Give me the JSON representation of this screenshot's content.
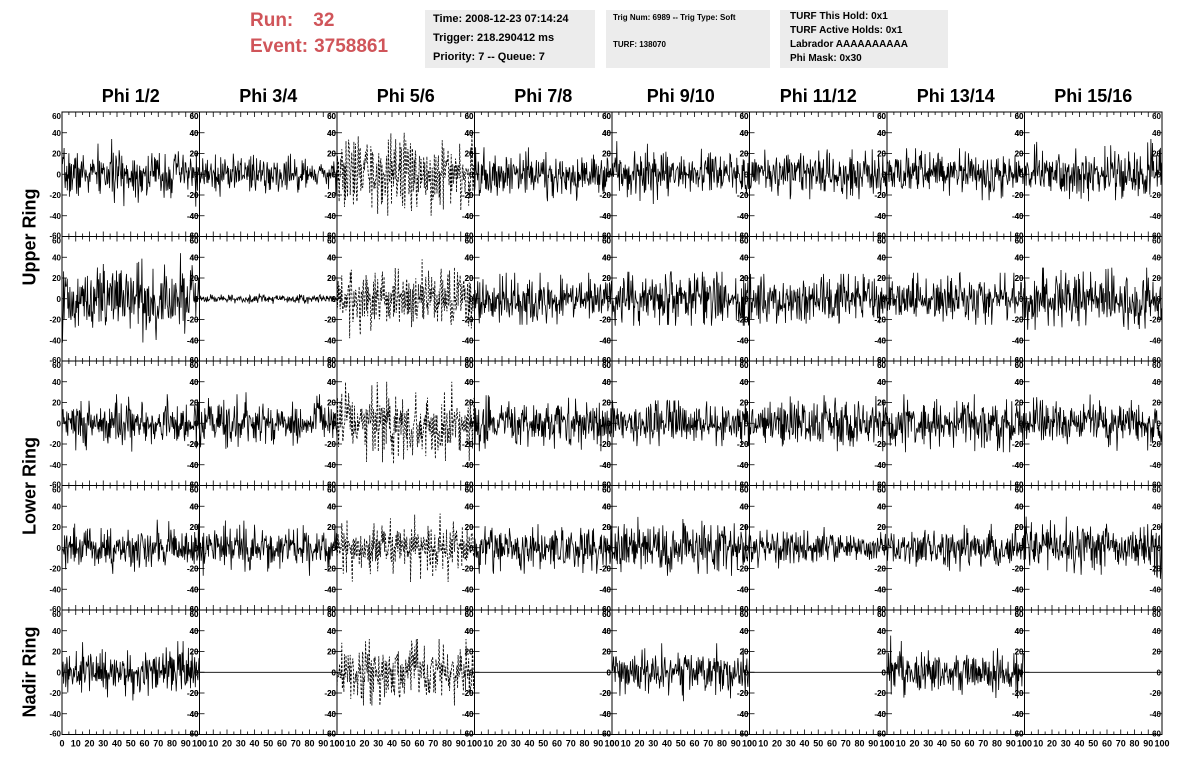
{
  "run": {
    "run_label": "Run:",
    "run_number": "32",
    "event_label": "Event:",
    "event_number": "3758861"
  },
  "info_box_1": [
    "Time: 2008-12-23 07:14:24",
    "Trigger: 218.290412 ms",
    "Priority: 7 -- Queue: 7"
  ],
  "info_box_2": [
    "Trig Num: 6989 -- Trig Type: Soft",
    "TURF: 138070"
  ],
  "info_box_3": [
    "TURF This Hold: 0x1",
    "TURF Active Holds: 0x1",
    "Labrador AAAAAAAAAA",
    "Phi Mask: 0x30"
  ],
  "colors": {
    "run_text": "#d0555a",
    "info_box_bg": "#ececec",
    "trace": "#000000"
  },
  "chart_data": {
    "type": "line",
    "phi_columns": [
      "Phi 1/2",
      "Phi 3/4",
      "Phi 5/6",
      "Phi 7/8",
      "Phi 9/10",
      "Phi 11/12",
      "Phi 13/14",
      "Phi 15/16"
    ],
    "ring_labels": [
      {
        "text": "Upper Ring",
        "rows": [
          0,
          1
        ]
      },
      {
        "text": "Lower Ring",
        "rows": [
          2,
          3
        ]
      },
      {
        "text": "Nadir Ring",
        "rows": [
          4
        ]
      }
    ],
    "rows": 5,
    "xlim": [
      0,
      100
    ],
    "ylim": [
      -60,
      60
    ],
    "y_ticks": [
      "-60",
      "-40",
      "-20",
      "0",
      "20",
      "40",
      "60"
    ],
    "x_tick_labels": [
      "0",
      "10",
      "20",
      "30",
      "40",
      "50",
      "60",
      "70",
      "80",
      "90",
      "100"
    ],
    "panels": [
      [
        {
          "amp": 11,
          "style": "solid",
          "max": 34
        },
        {
          "amp": 9,
          "style": "solid",
          "max": 22
        },
        {
          "amp": 17,
          "style": "dashed",
          "max": 40
        },
        {
          "amp": 11,
          "style": "solid",
          "max": 26
        },
        {
          "amp": 10,
          "style": "solid",
          "max": 32
        },
        {
          "amp": 10,
          "style": "solid",
          "max": 24
        },
        {
          "amp": 10,
          "style": "solid",
          "max": 25
        },
        {
          "amp": 12,
          "style": "solid",
          "max": 34
        }
      ],
      [
        {
          "amp": 16,
          "style": "solid",
          "max": 45
        },
        {
          "amp": 2,
          "style": "solid",
          "max": 5
        },
        {
          "amp": 14,
          "style": "dashed",
          "max": 45
        },
        {
          "amp": 11,
          "style": "solid",
          "max": 25
        },
        {
          "amp": 13,
          "style": "solid",
          "max": 26
        },
        {
          "amp": 11,
          "style": "solid",
          "max": 24
        },
        {
          "amp": 11,
          "style": "solid",
          "max": 25
        },
        {
          "amp": 14,
          "style": "solid",
          "max": 30
        }
      ],
      [
        {
          "amp": 11,
          "style": "solid",
          "max": 28
        },
        {
          "amp": 11,
          "style": "solid",
          "max": 30
        },
        {
          "amp": 16,
          "style": "dashed",
          "max": 40
        },
        {
          "amp": 11,
          "style": "solid",
          "max": 27
        },
        {
          "amp": 11,
          "style": "solid",
          "max": 22
        },
        {
          "amp": 12,
          "style": "solid",
          "max": 27
        },
        {
          "amp": 12,
          "style": "solid",
          "max": 28
        },
        {
          "amp": 10,
          "style": "solid",
          "max": 30
        }
      ],
      [
        {
          "amp": 10,
          "style": "solid",
          "max": 27
        },
        {
          "amp": 10,
          "style": "solid",
          "max": 27
        },
        {
          "amp": 12,
          "style": "dashed",
          "max": 33
        },
        {
          "amp": 12,
          "style": "solid",
          "max": 25
        },
        {
          "amp": 12,
          "style": "solid",
          "max": 33
        },
        {
          "amp": 8,
          "style": "solid",
          "max": 20
        },
        {
          "amp": 9,
          "style": "solid",
          "max": 23
        },
        {
          "amp": 12,
          "style": "solid",
          "max": 30
        }
      ],
      [
        {
          "amp": 11,
          "style": "solid",
          "max": 30
        },
        {
          "amp": 0,
          "style": "solid",
          "max": 0
        },
        {
          "amp": 13,
          "style": "dashed",
          "max": 32
        },
        {
          "amp": 0,
          "style": "solid",
          "max": 0
        },
        {
          "amp": 10,
          "style": "solid",
          "max": 28
        },
        {
          "amp": 0,
          "style": "solid",
          "max": 0
        },
        {
          "amp": 11,
          "style": "solid",
          "max": 40
        },
        {
          "amp": 0,
          "style": "solid",
          "max": 0
        }
      ]
    ]
  }
}
